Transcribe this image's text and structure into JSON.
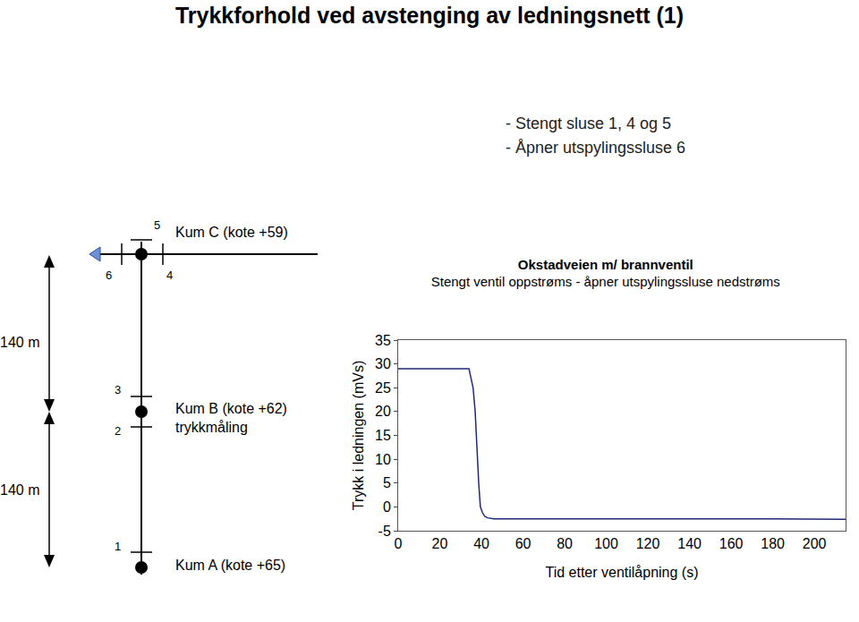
{
  "title": "Trykkforhold ved avstenging av ledningsnett (1)",
  "notes": [
    "- Stengt sluse 1, 4 og 5",
    "- Åpner utspylingssluse 6"
  ],
  "diagram": {
    "nodes": [
      {
        "label": "Kum C (kote +59)"
      },
      {
        "label": "Kum B (kote +62)",
        "note": "trykkmåling"
      },
      {
        "label": "Kum A (kote +65)"
      }
    ],
    "valves": [
      "5",
      "6",
      "4",
      "3",
      "2",
      "1"
    ],
    "distances": [
      "140 m",
      "140 m"
    ]
  },
  "chart_data": {
    "type": "line",
    "title": "Okstadveien m/ brannventil",
    "subtitle": "Stengt ventil oppstrøms - åpner utspylingssluse nedstrøms",
    "x_label": "Tid etter ventilåpning (s)",
    "y_label": "Trykk i ledningen (mVs)",
    "x": [
      0,
      34,
      35,
      36,
      37,
      37.5,
      38,
      38.7,
      39.5,
      40.5,
      41.6,
      43,
      46,
      60,
      100,
      150,
      180,
      215
    ],
    "series": [
      {
        "name": "Trykk",
        "color": "#1f2a7a",
        "values": [
          29,
          29,
          27,
          25,
          20,
          15,
          10,
          5,
          0,
          -1.2,
          -2,
          -2.3,
          -2.5,
          -2.5,
          -2.5,
          -2.4,
          -2.5,
          -2.6
        ]
      }
    ],
    "xlim": [
      0,
      215
    ],
    "xticks": [
      0,
      20,
      40,
      60,
      80,
      100,
      120,
      140,
      160,
      180,
      200
    ],
    "ylim": [
      -5,
      35
    ],
    "yticks": [
      -5,
      0,
      5,
      10,
      15,
      20,
      25,
      30,
      35
    ],
    "grid": false
  }
}
